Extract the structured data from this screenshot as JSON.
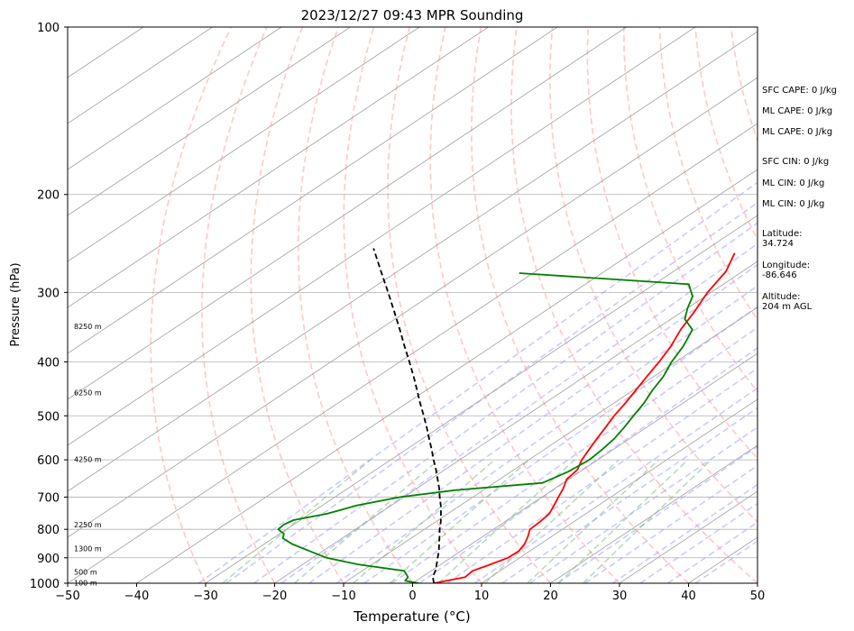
{
  "chart_data": {
    "type": "line",
    "title": "2023/12/27 09:43 MPR Sounding",
    "xlabel": "Temperature (°C)",
    "ylabel": "Pressure (hPa)",
    "xlim": [
      -50,
      50
    ],
    "ylim": [
      1000,
      100
    ],
    "yscale": "log",
    "grid": "on",
    "x_ticks": [
      "−50",
      "−40",
      "−30",
      "−20",
      "−10",
      "0",
      "10",
      "20",
      "30",
      "40",
      "50"
    ],
    "y_ticks": [
      {
        "p": 100,
        "label": "100"
      },
      {
        "p": 200,
        "label": "200"
      },
      {
        "p": 300,
        "label": "300"
      },
      {
        "p": 400,
        "label": "400"
      },
      {
        "p": 500,
        "label": "500"
      },
      {
        "p": 600,
        "label": "600"
      },
      {
        "p": 700,
        "label": "700"
      },
      {
        "p": 800,
        "label": "800"
      },
      {
        "p": 900,
        "label": "900"
      },
      {
        "p": 1000,
        "label": "1000"
      }
    ],
    "series": [
      {
        "key": "temperature",
        "color": "#ff0000",
        "style": "solid",
        "points": [
          [
            1000,
            3.1
          ],
          [
            975,
            6.3
          ],
          [
            950,
            6.0
          ],
          [
            925,
            7.2
          ],
          [
            900,
            8.3
          ],
          [
            875,
            8.4
          ],
          [
            850,
            7.7
          ],
          [
            825,
            6.6
          ],
          [
            800,
            5.3
          ],
          [
            775,
            5.1
          ],
          [
            750,
            4.7
          ],
          [
            725,
            3.6
          ],
          [
            700,
            2.4
          ],
          [
            675,
            1.2
          ],
          [
            650,
            -0.3
          ],
          [
            625,
            -0.8
          ],
          [
            600,
            -2.3
          ],
          [
            575,
            -3.5
          ],
          [
            550,
            -4.7
          ],
          [
            525,
            -5.9
          ],
          [
            500,
            -7.2
          ],
          [
            475,
            -8.3
          ],
          [
            450,
            -9.6
          ],
          [
            425,
            -11.0
          ],
          [
            400,
            -12.4
          ],
          [
            375,
            -14.1
          ],
          [
            350,
            -16.3
          ],
          [
            325,
            -18.2
          ],
          [
            300,
            -20.5
          ],
          [
            275,
            -22.4
          ],
          [
            255,
            -25.1
          ]
        ]
      },
      {
        "key": "dewpoint",
        "color": "#008000",
        "style": "solid",
        "points": [
          [
            1000,
            0.9
          ],
          [
            990,
            -1.6
          ],
          [
            975,
            -2.0
          ],
          [
            950,
            -3.9
          ],
          [
            925,
            -12.0
          ],
          [
            900,
            -18.0
          ],
          [
            875,
            -22.0
          ],
          [
            850,
            -26.0
          ],
          [
            830,
            -28.6
          ],
          [
            815,
            -29.4
          ],
          [
            800,
            -31.2
          ],
          [
            785,
            -31.4
          ],
          [
            770,
            -31.0
          ],
          [
            750,
            -27.5
          ],
          [
            725,
            -25.0
          ],
          [
            700,
            -20.5
          ],
          [
            680,
            -14.0
          ],
          [
            660,
            -3.0
          ],
          [
            630,
            -1.7
          ],
          [
            600,
            -1.2
          ],
          [
            575,
            -1.6
          ],
          [
            550,
            -2.2
          ],
          [
            525,
            -3.2
          ],
          [
            500,
            -4.4
          ],
          [
            475,
            -5.6
          ],
          [
            450,
            -7.2
          ],
          [
            425,
            -8.6
          ],
          [
            400,
            -10.6
          ],
          [
            375,
            -12.3
          ],
          [
            350,
            -14.6
          ],
          [
            335,
            -18.0
          ],
          [
            320,
            -20.0
          ],
          [
            305,
            -21.8
          ],
          [
            290,
            -25.0
          ],
          [
            277,
            -52.0
          ]
        ]
      },
      {
        "key": "parcel",
        "color": "#000000",
        "style": "dashed",
        "points": [
          [
            1000,
            3.1
          ],
          [
            975,
            1.6
          ],
          [
            950,
            0.6
          ],
          [
            925,
            -0.6
          ],
          [
            900,
            -1.9
          ],
          [
            875,
            -3.2
          ],
          [
            850,
            -4.7
          ],
          [
            825,
            -6.2
          ],
          [
            800,
            -7.8
          ],
          [
            775,
            -9.3
          ],
          [
            750,
            -11.0
          ],
          [
            725,
            -12.8
          ],
          [
            700,
            -14.8
          ],
          [
            675,
            -16.8
          ],
          [
            650,
            -19.0
          ],
          [
            625,
            -21.3
          ],
          [
            600,
            -23.8
          ],
          [
            575,
            -26.3
          ],
          [
            550,
            -29.0
          ],
          [
            525,
            -31.8
          ],
          [
            500,
            -34.8
          ],
          [
            475,
            -38.0
          ],
          [
            450,
            -41.3
          ],
          [
            425,
            -44.8
          ],
          [
            400,
            -48.6
          ],
          [
            375,
            -52.7
          ],
          [
            350,
            -57.0
          ],
          [
            325,
            -61.7
          ],
          [
            300,
            -66.8
          ],
          [
            275,
            -72.4
          ],
          [
            250,
            -78.5
          ]
        ]
      }
    ],
    "height_labels": [
      {
        "p": 998,
        "label": "100 m"
      },
      {
        "p": 955,
        "label": "500 m"
      },
      {
        "p": 866,
        "label": "1300 m"
      },
      {
        "p": 785,
        "label": "2250 m"
      },
      {
        "p": 599,
        "label": "4250 m"
      },
      {
        "p": 454,
        "label": "6250 m"
      },
      {
        "p": 345,
        "label": "8250 m"
      }
    ],
    "stats": [
      {
        "label": "SFC CAPE: 0 J/kg"
      },
      {
        "label": "ML CAPE: 0 J/kg"
      },
      {
        "label": "ML CAPE: 0 J/kg"
      },
      {
        "label": "SFC CIN: 0 J/kg"
      },
      {
        "label": "ML CIN: 0 J/kg"
      },
      {
        "label": "ML CIN: 0 J/kg"
      }
    ],
    "location": [
      {
        "label": "Latitude:",
        "value": "34.724"
      },
      {
        "label": "Longitude:",
        "value": "-86.646"
      },
      {
        "label": "Altitude:",
        "value": "204 m AGL"
      }
    ],
    "reference_lines": {
      "isotherm_color": "#a0a0a0",
      "dry_adiabat_color": "#ff9a9a",
      "moist_adiabat_color": "#8c8cff",
      "mixing_ratio_color": "#7fc07f"
    }
  }
}
